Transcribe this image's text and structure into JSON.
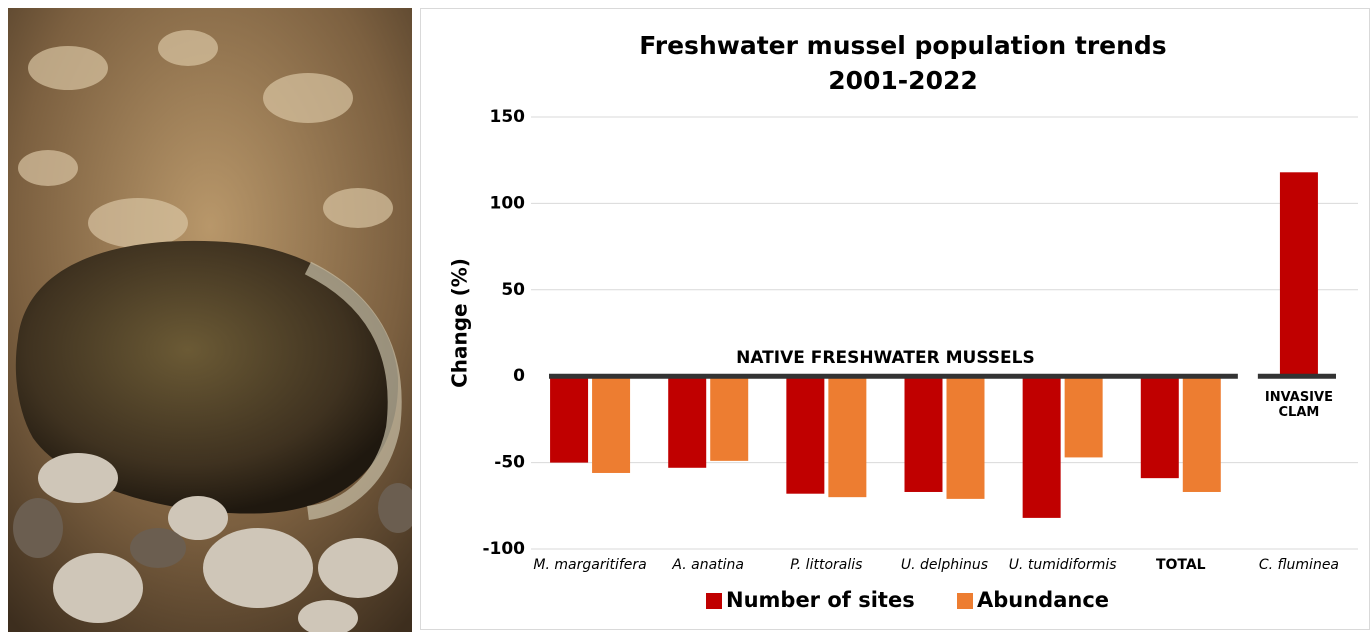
{
  "chart_data": {
    "type": "bar",
    "title": "Freshwater mussel population trends",
    "subtitle": "2001-2022",
    "y_label": "Change (%)",
    "categories": [
      "M. margaritifera",
      "A. anatina",
      "P. littoralis",
      "U. delphinus",
      "U. tumidiformis",
      "TOTAL",
      "C. fluminea"
    ],
    "series": [
      {
        "name": "Number of sites",
        "color": "#c00000",
        "values": [
          -50,
          -53,
          -68,
          -67,
          -82,
          -59,
          118
        ]
      },
      {
        "name": "Abundance",
        "color": "#ed7d31",
        "values": [
          -56,
          -49,
          -70,
          -71,
          -47,
          -67,
          null
        ]
      }
    ],
    "annotations": [
      "NATIVE FRESHWATER MUSSELS",
      "INVASIVE CLAM"
    ],
    "ylim": [
      -100,
      150
    ],
    "yticks": [
      -100,
      -50,
      0,
      50,
      100,
      150
    ],
    "grid": true,
    "legend": "bottom"
  }
}
